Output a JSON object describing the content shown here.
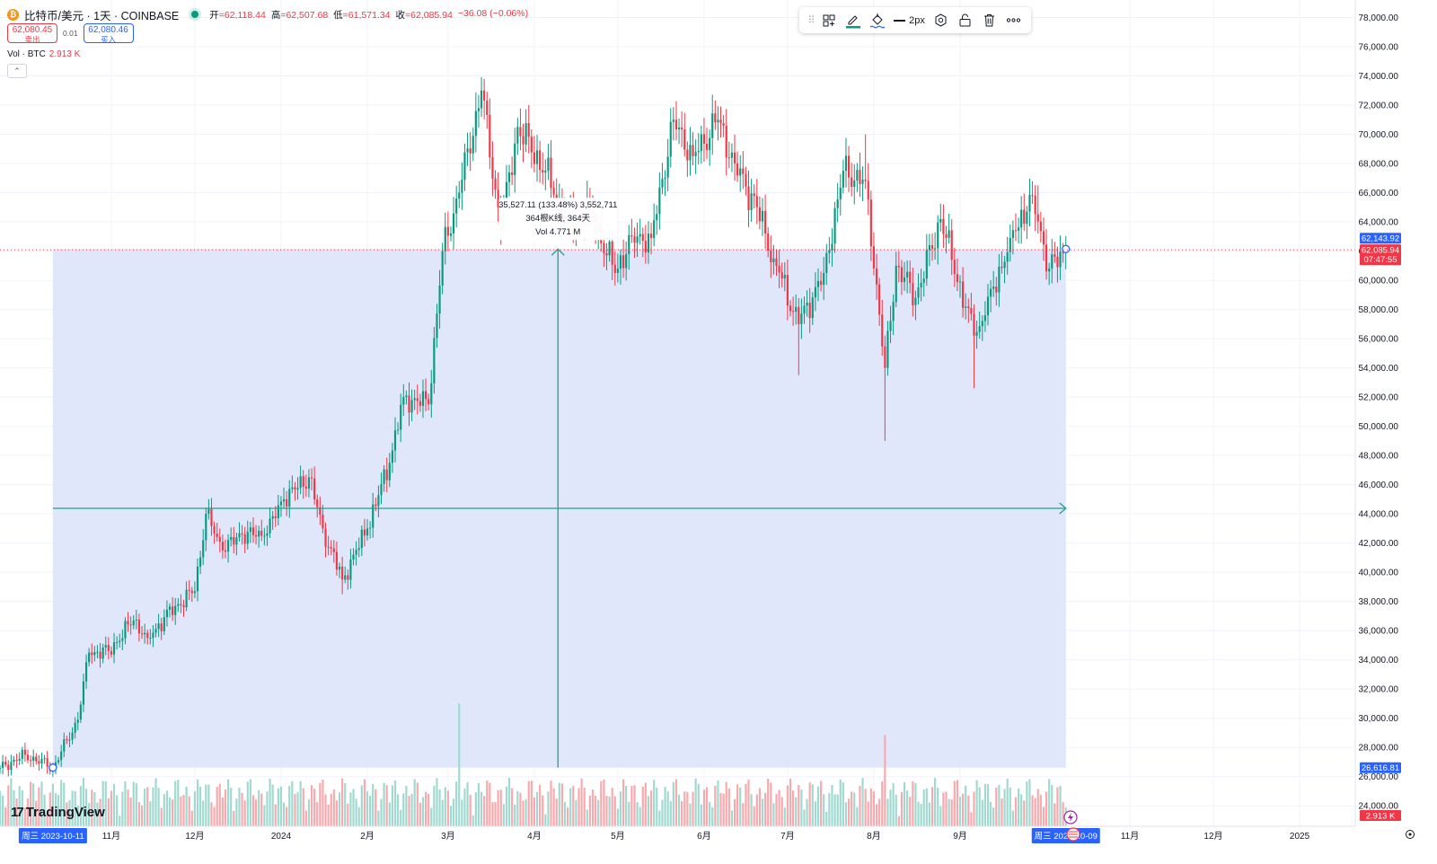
{
  "header": {
    "symbol": "比特币/美元 · 1天 · COINBASE",
    "open_label": "开",
    "open": "=62,118.44",
    "high_label": "高",
    "high": "=62,507.68",
    "low_label": "低",
    "low": "=61,571.34",
    "close_label": "收",
    "close": "=62,085.94",
    "change": "−36.08 (−0.06%)"
  },
  "quote": {
    "sell_price": "62,080.45",
    "sell_label": "卖出",
    "spread": "0.01",
    "buy_price": "62,080.46",
    "buy_label": "买入"
  },
  "volume_indicator": {
    "label": "Vol · BTC",
    "value": "2.913 K"
  },
  "collapse_icon": "chevron-up-icon",
  "toolbar": {
    "width_label": "2px",
    "icons": [
      "drag-grip-icon",
      "templates-icon",
      "line-color-pencil-icon",
      "fill-color-bucket-icon",
      "line-width-icon",
      "settings-icon",
      "lock-icon",
      "delete-trash-icon",
      "more-options-icon"
    ]
  },
  "measure_label": {
    "line1": "35,527.11 (133.48%) 3,552,711",
    "line2": "364根K线, 364天",
    "line3": "Vol 4.771 M"
  },
  "price_tags": {
    "measure_top": "62,143.92",
    "last_price": "62,085.94",
    "countdown": "07:47:55",
    "measure_bottom": "26,616.81",
    "volume": "2.913 K"
  },
  "time_tags": {
    "start": "周三 2023-10-11",
    "end": "周三 2024-10-09"
  },
  "logo": {
    "text": "TradingView"
  },
  "colors": {
    "up": "#089981",
    "down": "#f23645",
    "vol_up": "#9fd9cf",
    "vol_down": "#f7a9ae",
    "measure_fill": "#dde4fb",
    "measure_line": "#22a08a",
    "axis_tag_blue": "#2962ff"
  },
  "chart_data": {
    "type": "candlestick",
    "title": "比特币/美元 · 1天 · COINBASE",
    "y_axis_ticks": [
      24000,
      26000,
      28000,
      30000,
      32000,
      34000,
      36000,
      38000,
      40000,
      42000,
      44000,
      46000,
      48000,
      50000,
      52000,
      54000,
      56000,
      58000,
      60000,
      62000,
      64000,
      66000,
      68000,
      70000,
      72000,
      74000,
      76000,
      78000
    ],
    "y_axis_tick_labels": [
      "24,000.00",
      "26,000.00",
      "28,000.00",
      "30,000.00",
      "32,000.00",
      "34,000.00",
      "36,000.00",
      "38,000.00",
      "40,000.00",
      "42,000.00",
      "44,000.00",
      "46,000.00",
      "48,000.00",
      "50,000.00",
      "52,000.00",
      "54,000.00",
      "56,000.00",
      "58,000.00",
      "60,000.00",
      "62,000.00",
      "64,000.00",
      "66,000.00",
      "68,000.00",
      "70,000.00",
      "72,000.00",
      "74,000.00",
      "76,000.00",
      "78,000.00"
    ],
    "ylim": [
      22600,
      79200
    ],
    "x_axis_labels": [
      "11月",
      "12月",
      "2024",
      "2月",
      "3月",
      "4月",
      "5月",
      "6月",
      "7月",
      "8月",
      "9月",
      "11月",
      "12月",
      "2025"
    ],
    "x_axis_label_dates": [
      "2023-11-01",
      "2023-12-01",
      "2024-01-01",
      "2024-02-01",
      "2024-03-01",
      "2024-04-01",
      "2024-05-01",
      "2024-06-01",
      "2024-07-01",
      "2024-08-01",
      "2024-09-01",
      "2024-11-01",
      "2024-12-01",
      "2025-01-01"
    ],
    "x_start_date": "2023-09-22",
    "x_end_date": "2025-01-21",
    "price_anchors": [
      [
        "2023-09-22",
        26600
      ],
      [
        "2023-10-01",
        27500
      ],
      [
        "2023-10-11",
        26616.81
      ],
      [
        "2023-10-20",
        29900
      ],
      [
        "2023-10-24",
        34500
      ],
      [
        "2023-10-31",
        34600
      ],
      [
        "2023-11-09",
        36700
      ],
      [
        "2023-11-14",
        35500
      ],
      [
        "2023-11-24",
        37700
      ],
      [
        "2023-12-01",
        38700
      ],
      [
        "2023-12-05",
        44000
      ],
      [
        "2023-12-11",
        41500
      ],
      [
        "2023-12-18",
        42600
      ],
      [
        "2023-12-26",
        42500
      ],
      [
        "2024-01-02",
        45000
      ],
      [
        "2024-01-11",
        46500
      ],
      [
        "2024-01-16",
        43000
      ],
      [
        "2024-01-23",
        39500
      ],
      [
        "2024-02-01",
        43000
      ],
      [
        "2024-02-09",
        47500
      ],
      [
        "2024-02-14",
        52000
      ],
      [
        "2024-02-23",
        51500
      ],
      [
        "2024-02-28",
        62000
      ],
      [
        "2024-03-05",
        66000
      ],
      [
        "2024-03-13",
        73000
      ],
      [
        "2024-03-20",
        63500
      ],
      [
        "2024-03-26",
        70500
      ],
      [
        "2024-04-05",
        67500
      ],
      [
        "2024-04-13",
        64000
      ],
      [
        "2024-04-21",
        64900
      ],
      [
        "2024-04-30",
        60500
      ],
      [
        "2024-05-06",
        63000
      ],
      [
        "2024-05-13",
        62900
      ],
      [
        "2024-05-21",
        71000
      ],
      [
        "2024-05-28",
        68500
      ],
      [
        "2024-06-06",
        71000
      ],
      [
        "2024-06-12",
        68000
      ],
      [
        "2024-06-20",
        65000
      ],
      [
        "2024-06-26",
        61500
      ],
      [
        "2024-07-05",
        57000
      ],
      [
        "2024-07-14",
        60500
      ],
      [
        "2024-07-21",
        67500
      ],
      [
        "2024-07-29",
        66800
      ],
      [
        "2024-08-05",
        54000
      ],
      [
        "2024-08-09",
        61000
      ],
      [
        "2024-08-16",
        58800
      ],
      [
        "2024-08-25",
        64200
      ],
      [
        "2024-09-06",
        56200
      ],
      [
        "2024-09-10",
        57600
      ],
      [
        "2024-09-19",
        62900
      ],
      [
        "2024-09-27",
        65800
      ],
      [
        "2024-10-03",
        60800
      ],
      [
        "2024-10-09",
        62085.94
      ]
    ],
    "notable_highs": [
      [
        "2024-03-14",
        73800
      ],
      [
        "2024-06-07",
        71900
      ],
      [
        "2024-07-29",
        70000
      ],
      [
        "2024-09-29",
        66500
      ]
    ],
    "notable_lows": [
      [
        "2024-01-23",
        38500
      ],
      [
        "2024-07-05",
        53500
      ],
      [
        "2024-08-05",
        49000
      ],
      [
        "2024-09-06",
        52600
      ]
    ],
    "volume_spikes_k": [
      [
        "2024-03-05",
        43
      ],
      [
        "2024-08-05",
        32
      ]
    ],
    "measure_tool": {
      "start_date": "2023-10-11",
      "start_price": 26616.81,
      "end_date": "2024-10-09",
      "end_price": 62143.92,
      "price_change": "35,527.11",
      "percent_change": "133.48%",
      "ticks": "3,552,711",
      "bars": 364,
      "days": 364,
      "volume": "Vol 4.771 M"
    }
  }
}
